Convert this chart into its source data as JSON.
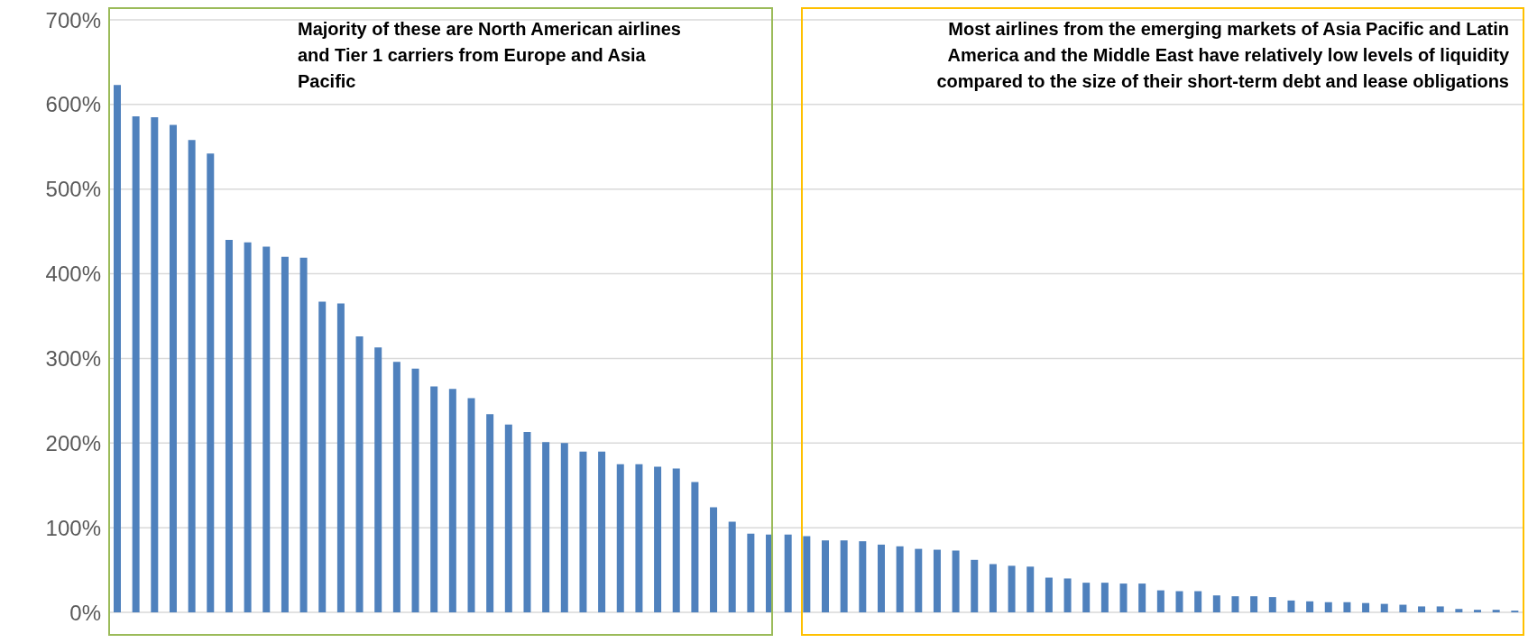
{
  "chart_data": {
    "type": "bar",
    "categories": [
      null,
      null,
      null,
      null,
      null,
      null,
      null,
      null,
      null,
      null,
      null,
      null,
      null,
      null,
      null,
      null,
      null,
      null,
      null,
      null,
      null,
      null,
      null,
      null,
      null,
      null,
      null,
      null,
      null,
      null,
      null,
      null,
      null,
      null,
      null,
      null,
      null,
      null,
      null,
      null,
      null,
      null,
      null,
      null,
      null,
      null,
      null,
      null,
      null,
      null,
      null,
      null,
      null,
      null,
      null,
      null,
      null,
      null,
      null,
      null,
      null,
      null,
      null,
      null,
      null,
      null,
      null,
      null,
      null,
      null,
      null,
      null,
      null,
      null,
      null,
      null
    ],
    "values": [
      623,
      586,
      585,
      576,
      558,
      542,
      440,
      437,
      432,
      420,
      419,
      367,
      365,
      326,
      313,
      296,
      288,
      267,
      264,
      253,
      234,
      222,
      213,
      201,
      200,
      190,
      190,
      175,
      175,
      172,
      170,
      154,
      124,
      107,
      93,
      92,
      92,
      90,
      85,
      85,
      84,
      80,
      78,
      75,
      74,
      73,
      62,
      57,
      55,
      54,
      41,
      40,
      35,
      35,
      34,
      34,
      26,
      25,
      25,
      20,
      19,
      19,
      18,
      14,
      13,
      12,
      12,
      11,
      10,
      9,
      7,
      7,
      4,
      3,
      3,
      2
    ],
    "color": "#4f81bd",
    "ylim": [
      0,
      700
    ],
    "yticks": [
      {
        "value": 0,
        "label": "0%"
      },
      {
        "value": 100,
        "label": "100%"
      },
      {
        "value": 200,
        "label": "200%"
      },
      {
        "value": 300,
        "label": "300%"
      },
      {
        "value": 400,
        "label": "400%"
      },
      {
        "value": 500,
        "label": "500%"
      },
      {
        "value": 600,
        "label": "600%"
      },
      {
        "value": 700,
        "label": "700%"
      }
    ],
    "grid": "y",
    "tick_labels": "y",
    "annotations": [
      "Majority of these are North American airlines and Tier 1 carriers from Europe and Asia Pacific",
      "Most airlines from the emerging markets of Asia Pacific and Latin America and the Middle East have relatively low levels of liquidity compared to the size of their short-term debt and lease obligations"
    ]
  }
}
